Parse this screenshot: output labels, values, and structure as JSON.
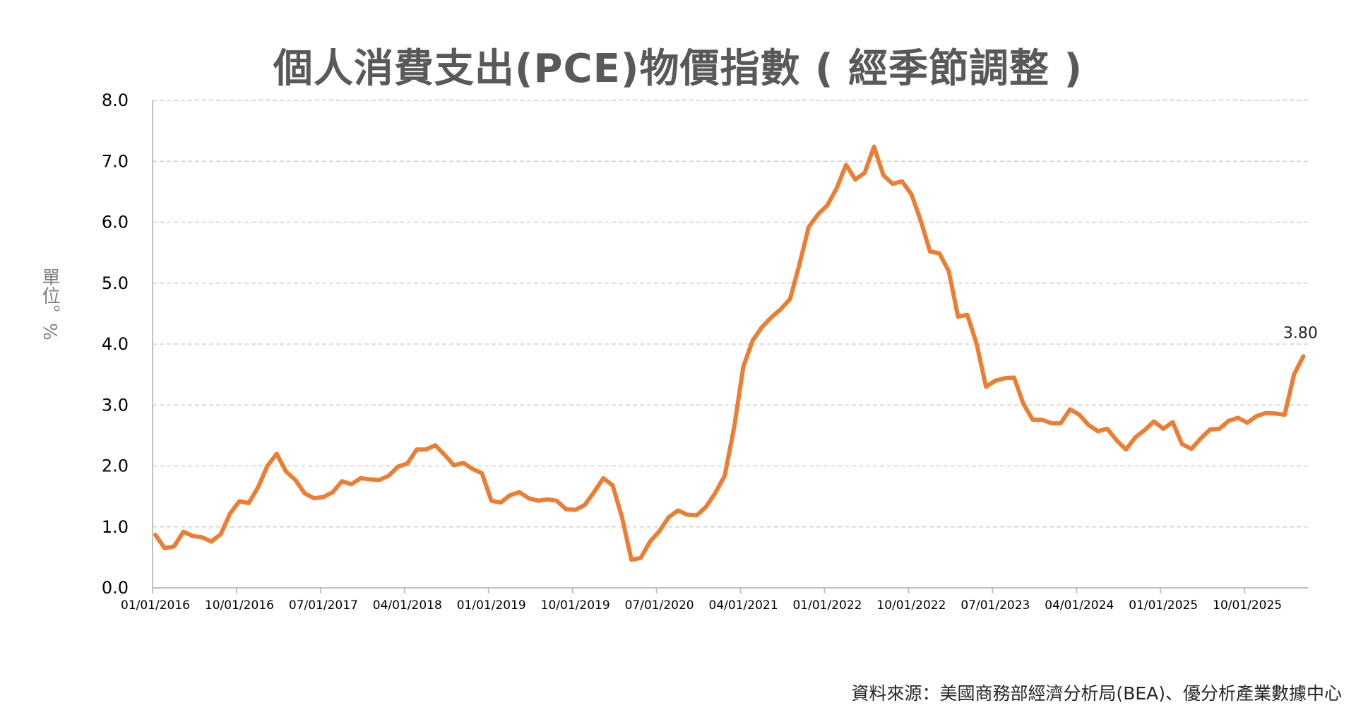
{
  "chart_data": {
    "type": "line",
    "title": "個人消費支出(PCE)物價指數 ( 經季節調整 )",
    "ylabel": "單位。%",
    "xlabel": "",
    "ylim": [
      0,
      8
    ],
    "yticks": [
      "0.0",
      "1.0",
      "2.0",
      "3.0",
      "4.0",
      "5.0",
      "6.0",
      "7.0",
      "8.0"
    ],
    "xticks": [
      "01/01/2016",
      "10/01/2016",
      "07/01/2017",
      "04/01/2018",
      "01/01/2019",
      "10/01/2019",
      "07/01/2020",
      "04/01/2021",
      "01/01/2022",
      "10/01/2022",
      "07/01/2023",
      "04/01/2024",
      "01/01/2025",
      "10/01/2025"
    ],
    "grid": true,
    "series": [
      {
        "color": "#ed7d31",
        "start": "2016-01",
        "frequency": "monthly",
        "values": [
          0.87,
          0.65,
          0.68,
          0.92,
          0.85,
          0.83,
          0.76,
          0.88,
          1.22,
          1.42,
          1.39,
          1.65,
          2.0,
          2.2,
          1.91,
          1.77,
          1.55,
          1.47,
          1.49,
          1.57,
          1.75,
          1.7,
          1.8,
          1.78,
          1.77,
          1.84,
          1.99,
          2.04,
          2.27,
          2.27,
          2.34,
          2.18,
          2.01,
          2.05,
          1.95,
          1.88,
          1.43,
          1.4,
          1.52,
          1.57,
          1.47,
          1.43,
          1.45,
          1.43,
          1.29,
          1.28,
          1.36,
          1.57,
          1.8,
          1.68,
          1.16,
          0.46,
          0.49,
          0.76,
          0.93,
          1.16,
          1.27,
          1.2,
          1.19,
          1.33,
          1.56,
          1.84,
          2.62,
          3.63,
          4.06,
          4.28,
          4.44,
          4.57,
          4.74,
          5.3,
          5.92,
          6.13,
          6.28,
          6.56,
          6.94,
          6.7,
          6.81,
          7.24,
          6.77,
          6.63,
          6.67,
          6.46,
          6.03,
          5.52,
          5.49,
          5.2,
          4.45,
          4.48,
          4.0,
          3.3,
          3.4,
          3.44,
          3.45,
          3.02,
          2.76,
          2.76,
          2.7,
          2.7,
          2.93,
          2.84,
          2.67,
          2.57,
          2.61,
          2.42,
          2.27,
          2.47,
          2.59,
          2.73,
          2.61,
          2.72,
          2.36,
          2.28,
          2.45,
          2.6,
          2.61,
          2.74,
          2.79,
          2.71,
          2.82,
          2.87,
          2.86,
          2.84,
          3.5,
          3.8
        ]
      }
    ],
    "annotation": "3.80"
  },
  "source_note": "資料來源：美國商務部經濟分析局(BEA)、優分析產業數據中心"
}
